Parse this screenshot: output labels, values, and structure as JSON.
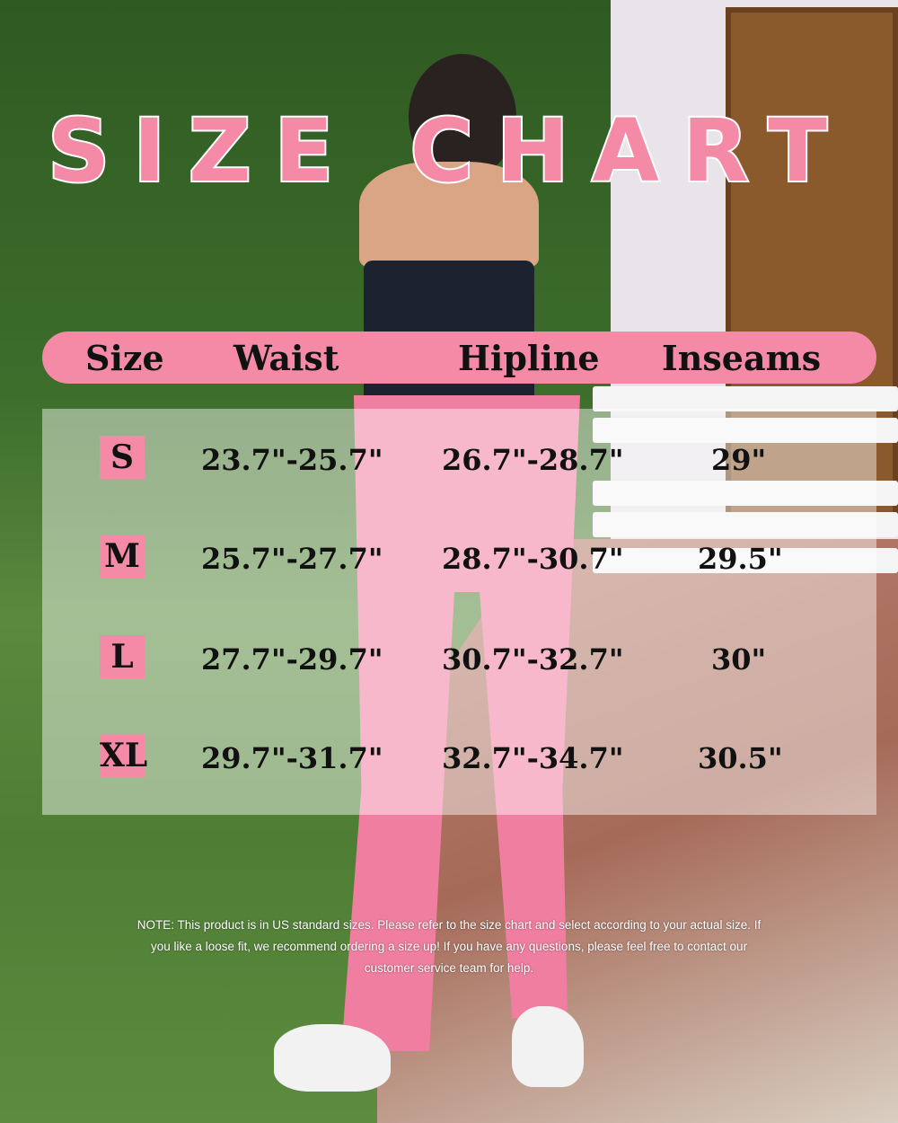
{
  "title": "SIZE CHART",
  "columns": [
    "Size",
    "Waist",
    "Hipline",
    "Inseams"
  ],
  "rows": [
    {
      "size": "S",
      "waist": "23.7\"-25.7\"",
      "hipline": "26.7\"-28.7\"",
      "inseam": "29\""
    },
    {
      "size": "M",
      "waist": "25.7\"-27.7\"",
      "hipline": "28.7\"-30.7\"",
      "inseam": "29.5\""
    },
    {
      "size": "L",
      "waist": "27.7\"-29.7\"",
      "hipline": "30.7\"-32.7\"",
      "inseam": "30\""
    },
    {
      "size": "XL",
      "waist": "29.7\"-31.7\"",
      "hipline": "32.7\"-34.7\"",
      "inseam": "30.5\""
    }
  ],
  "note": "NOTE:  This product is in US standard sizes. Please refer to the size chart and select according to your actual size. If you like a loose fit, we  recommend ordering a size up! If you have any questions, please feel free to contact our customer service team for help.",
  "colors": {
    "accent": "#f58aa6"
  }
}
